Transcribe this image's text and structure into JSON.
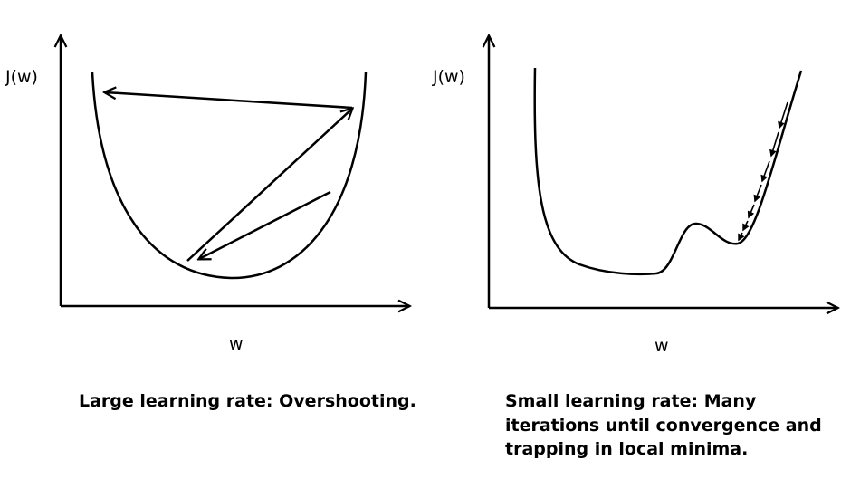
{
  "panels": {
    "left": {
      "ylabel": "J(w)",
      "xlabel": "w",
      "caption": "Large learning rate: Overshooting."
    },
    "right": {
      "ylabel": "J(w)",
      "xlabel": "w",
      "caption": "Small learning rate: Many iterations until convergence and trapping in local minima."
    }
  },
  "colors": {
    "ink": "#000000",
    "background": "#ffffff"
  }
}
